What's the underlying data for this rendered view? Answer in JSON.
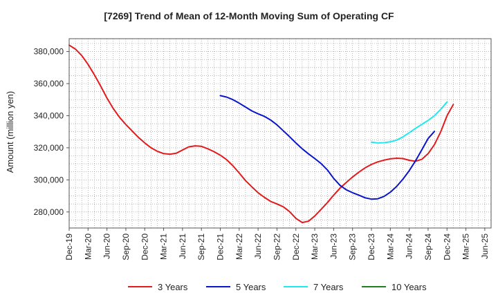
{
  "chart_data": {
    "type": "line",
    "title": "[7269]  Trend of Mean of 12-Month Moving Sum of Operating CF",
    "xlabel": "",
    "ylabel": "Amount (million yen)",
    "ylim": [
      270000,
      388000
    ],
    "yticks": [
      280000,
      300000,
      320000,
      340000,
      360000,
      380000
    ],
    "ytick_labels": [
      "280,000",
      "300,000",
      "320,000",
      "340,000",
      "360,000",
      "380,000"
    ],
    "x_start": "Dec-19",
    "x_months": 67,
    "xtick_labels": [
      "Dec-19",
      "Mar-20",
      "Jun-20",
      "Sep-20",
      "Dec-20",
      "Mar-21",
      "Jun-21",
      "Sep-21",
      "Dec-21",
      "Mar-22",
      "Jun-22",
      "Sep-22",
      "Dec-22",
      "Mar-23",
      "Jun-23",
      "Sep-23",
      "Dec-23",
      "Mar-24",
      "Jun-24",
      "Sep-24",
      "Dec-24",
      "Mar-25",
      "Jun-25"
    ],
    "grid": true,
    "legend_position": "bottom",
    "series": [
      {
        "name": "3 Years",
        "color": "#e31a1c",
        "start": 0,
        "values": [
          384000,
          381500,
          377500,
          372000,
          365500,
          358500,
          351000,
          344500,
          339000,
          334500,
          330500,
          326500,
          323000,
          320000,
          317800,
          316400,
          316000,
          316600,
          318600,
          320600,
          321200,
          320900,
          319400,
          317600,
          315400,
          312600,
          308800,
          304300,
          299600,
          295700,
          292000,
          289100,
          286600,
          285000,
          283200,
          280200,
          276000,
          273400,
          274200,
          277500,
          281600,
          285800,
          290500,
          294800,
          298400,
          301800,
          304800,
          307500,
          309600,
          311200,
          312300,
          313100,
          313500,
          313300,
          312200,
          311600,
          312800,
          316400,
          322000,
          330000,
          340000,
          347000
        ]
      },
      {
        "name": "5 Years",
        "color": "#0a14c8",
        "start": 24,
        "values": [
          352500,
          351600,
          350000,
          347800,
          345400,
          343000,
          341200,
          339600,
          337300,
          334300,
          330600,
          326900,
          323000,
          319400,
          316200,
          313300,
          310200,
          306200,
          300900,
          296600,
          293800,
          292000,
          290500,
          288800,
          288000,
          288200,
          289700,
          292300,
          295900,
          300400,
          305700,
          311800,
          318800,
          325800,
          330200
        ]
      },
      {
        "name": "7 Years",
        "color": "#1de9ef",
        "start": 48,
        "values": [
          323500,
          323000,
          323200,
          323700,
          324800,
          326800,
          329400,
          332100,
          334600,
          337100,
          340000,
          344000,
          348500
        ]
      },
      {
        "name": "10 Years",
        "color": "#1f7f1f",
        "start": 0,
        "values": []
      }
    ]
  }
}
